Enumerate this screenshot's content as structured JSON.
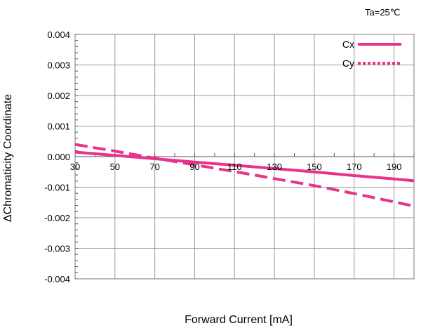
{
  "chart_data": {
    "type": "line",
    "condition": "Ta=25℃",
    "xlabel": "Forward Current [mA]",
    "ylabel": "ΔChromaticity Coordinate",
    "xlim": [
      30,
      200
    ],
    "ylim": [
      -0.004,
      0.004
    ],
    "x_ticks": [
      "30",
      "50",
      "70",
      "90",
      "110",
      "130",
      "150",
      "170",
      "190"
    ],
    "y_ticks": [
      "0.004",
      "0.003",
      "0.002",
      "0.001",
      "0.000",
      "-0.001",
      "-0.002",
      "-0.003",
      "-0.004"
    ],
    "grid": true,
    "legend_position": "top-right",
    "series": [
      {
        "name": "Cx",
        "style": "solid",
        "color": "#e8338a",
        "x": [
          30,
          50,
          70,
          90,
          110,
          130,
          150,
          170,
          190,
          200
        ],
        "y": [
          0.00015,
          4e-05,
          -7e-05,
          -0.00018,
          -0.00028,
          -0.00039,
          -0.0005,
          -0.00062,
          -0.00073,
          -0.00079
        ]
      },
      {
        "name": "Cy",
        "style": "dashed",
        "color": "#e8338a",
        "x": [
          30,
          50,
          70,
          90,
          110,
          130,
          150,
          170,
          190,
          200
        ],
        "y": [
          0.0004,
          0.00018,
          -5e-05,
          -0.00027,
          -0.00049,
          -0.00072,
          -0.00095,
          -0.00121,
          -0.00148,
          -0.00162
        ]
      }
    ]
  }
}
